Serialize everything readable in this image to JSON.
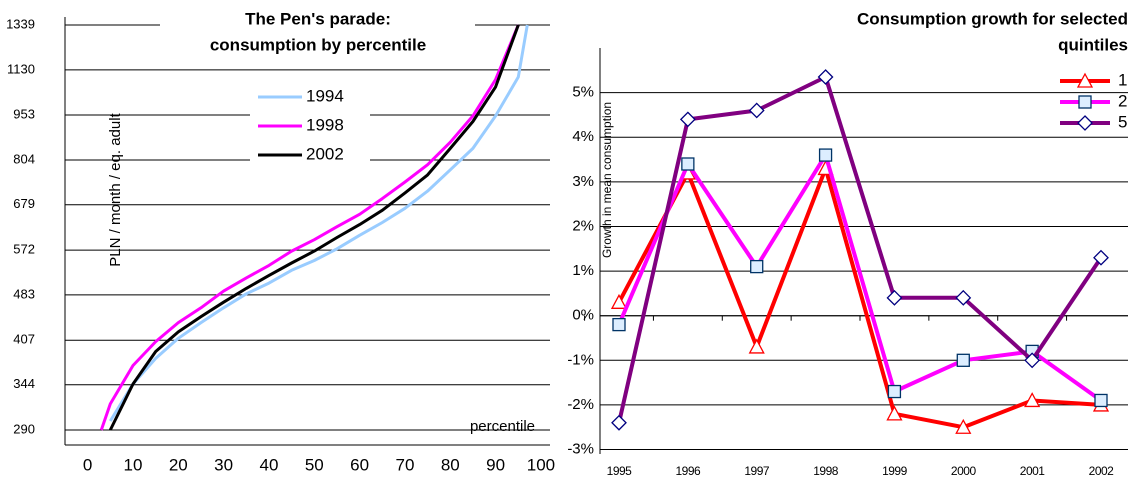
{
  "chart_data": [
    {
      "type": "line",
      "title": [
        "The Pen's parade:",
        "consumption by percentile"
      ],
      "y_label": "PLN / month / eq. adult",
      "x_label": "percentile",
      "log_y": true,
      "x": [
        3,
        5,
        10,
        15,
        20,
        25,
        30,
        35,
        40,
        45,
        50,
        55,
        60,
        65,
        70,
        75,
        80,
        85,
        90,
        95,
        97
      ],
      "series": [
        {
          "name": "1994",
          "color": "#99ccff",
          "values": [
            null,
            300,
            345,
            380,
            410,
            435,
            460,
            485,
            505,
            530,
            550,
            575,
            605,
            635,
            670,
            715,
            775,
            840,
            950,
            1100,
            1339
          ]
        },
        {
          "name": "1998",
          "color": "#ff00ff",
          "values": [
            290,
            320,
            370,
            405,
            435,
            460,
            490,
            515,
            540,
            570,
            595,
            625,
            655,
            695,
            740,
            790,
            860,
            950,
            1090,
            1339,
            null
          ]
        },
        {
          "name": "2002",
          "color": "#000000",
          "values": [
            null,
            290,
            345,
            390,
            420,
            445,
            470,
            495,
            520,
            545,
            570,
            600,
            630,
            665,
            710,
            760,
            840,
            930,
            1060,
            1339,
            null
          ]
        }
      ],
      "xlim": [
        -5,
        102
      ],
      "xticks": [
        0,
        10,
        20,
        30,
        40,
        50,
        60,
        70,
        80,
        90,
        100
      ],
      "ylim": [
        274,
        1339
      ],
      "yticks": [
        290,
        344,
        407,
        483,
        572,
        679,
        804,
        953,
        1130,
        1339
      ],
      "grid": true
    },
    {
      "type": "line",
      "title": [
        "Consumption growth for selected",
        "quintiles"
      ],
      "y_label": "Growth in mean consumption",
      "categories": [
        "1995",
        "1996",
        "1997",
        "1998",
        "1999",
        "2000",
        "2001",
        "2002"
      ],
      "series": [
        {
          "name": "1",
          "color": "#ff0000",
          "marker": "triangle",
          "values": [
            0.3,
            3.2,
            -0.7,
            3.3,
            -2.2,
            -2.5,
            -1.9,
            -2.0
          ]
        },
        {
          "name": "2",
          "color": "#ff00ff",
          "marker": "square",
          "values": [
            -0.2,
            3.4,
            1.1,
            3.6,
            -1.7,
            -1.0,
            -0.8,
            -1.9
          ]
        },
        {
          "name": "5",
          "color": "#800080",
          "marker": "diamond",
          "values": [
            -2.4,
            4.4,
            4.6,
            5.35,
            0.4,
            0.4,
            -1.0,
            1.3
          ]
        }
      ],
      "ylim": [
        -3.1,
        6
      ],
      "yticks": [
        {
          "value": -3,
          "label": "-3%"
        },
        {
          "value": -2,
          "label": "-2%"
        },
        {
          "value": -1,
          "label": "-1%"
        },
        {
          "value": 0,
          "label": "0%"
        },
        {
          "value": 1,
          "label": "1%"
        },
        {
          "value": 2,
          "label": "2%"
        },
        {
          "value": 3,
          "label": "3%"
        },
        {
          "value": 4,
          "label": "4%"
        },
        {
          "value": 5,
          "label": "5%"
        }
      ],
      "grid": true
    }
  ]
}
